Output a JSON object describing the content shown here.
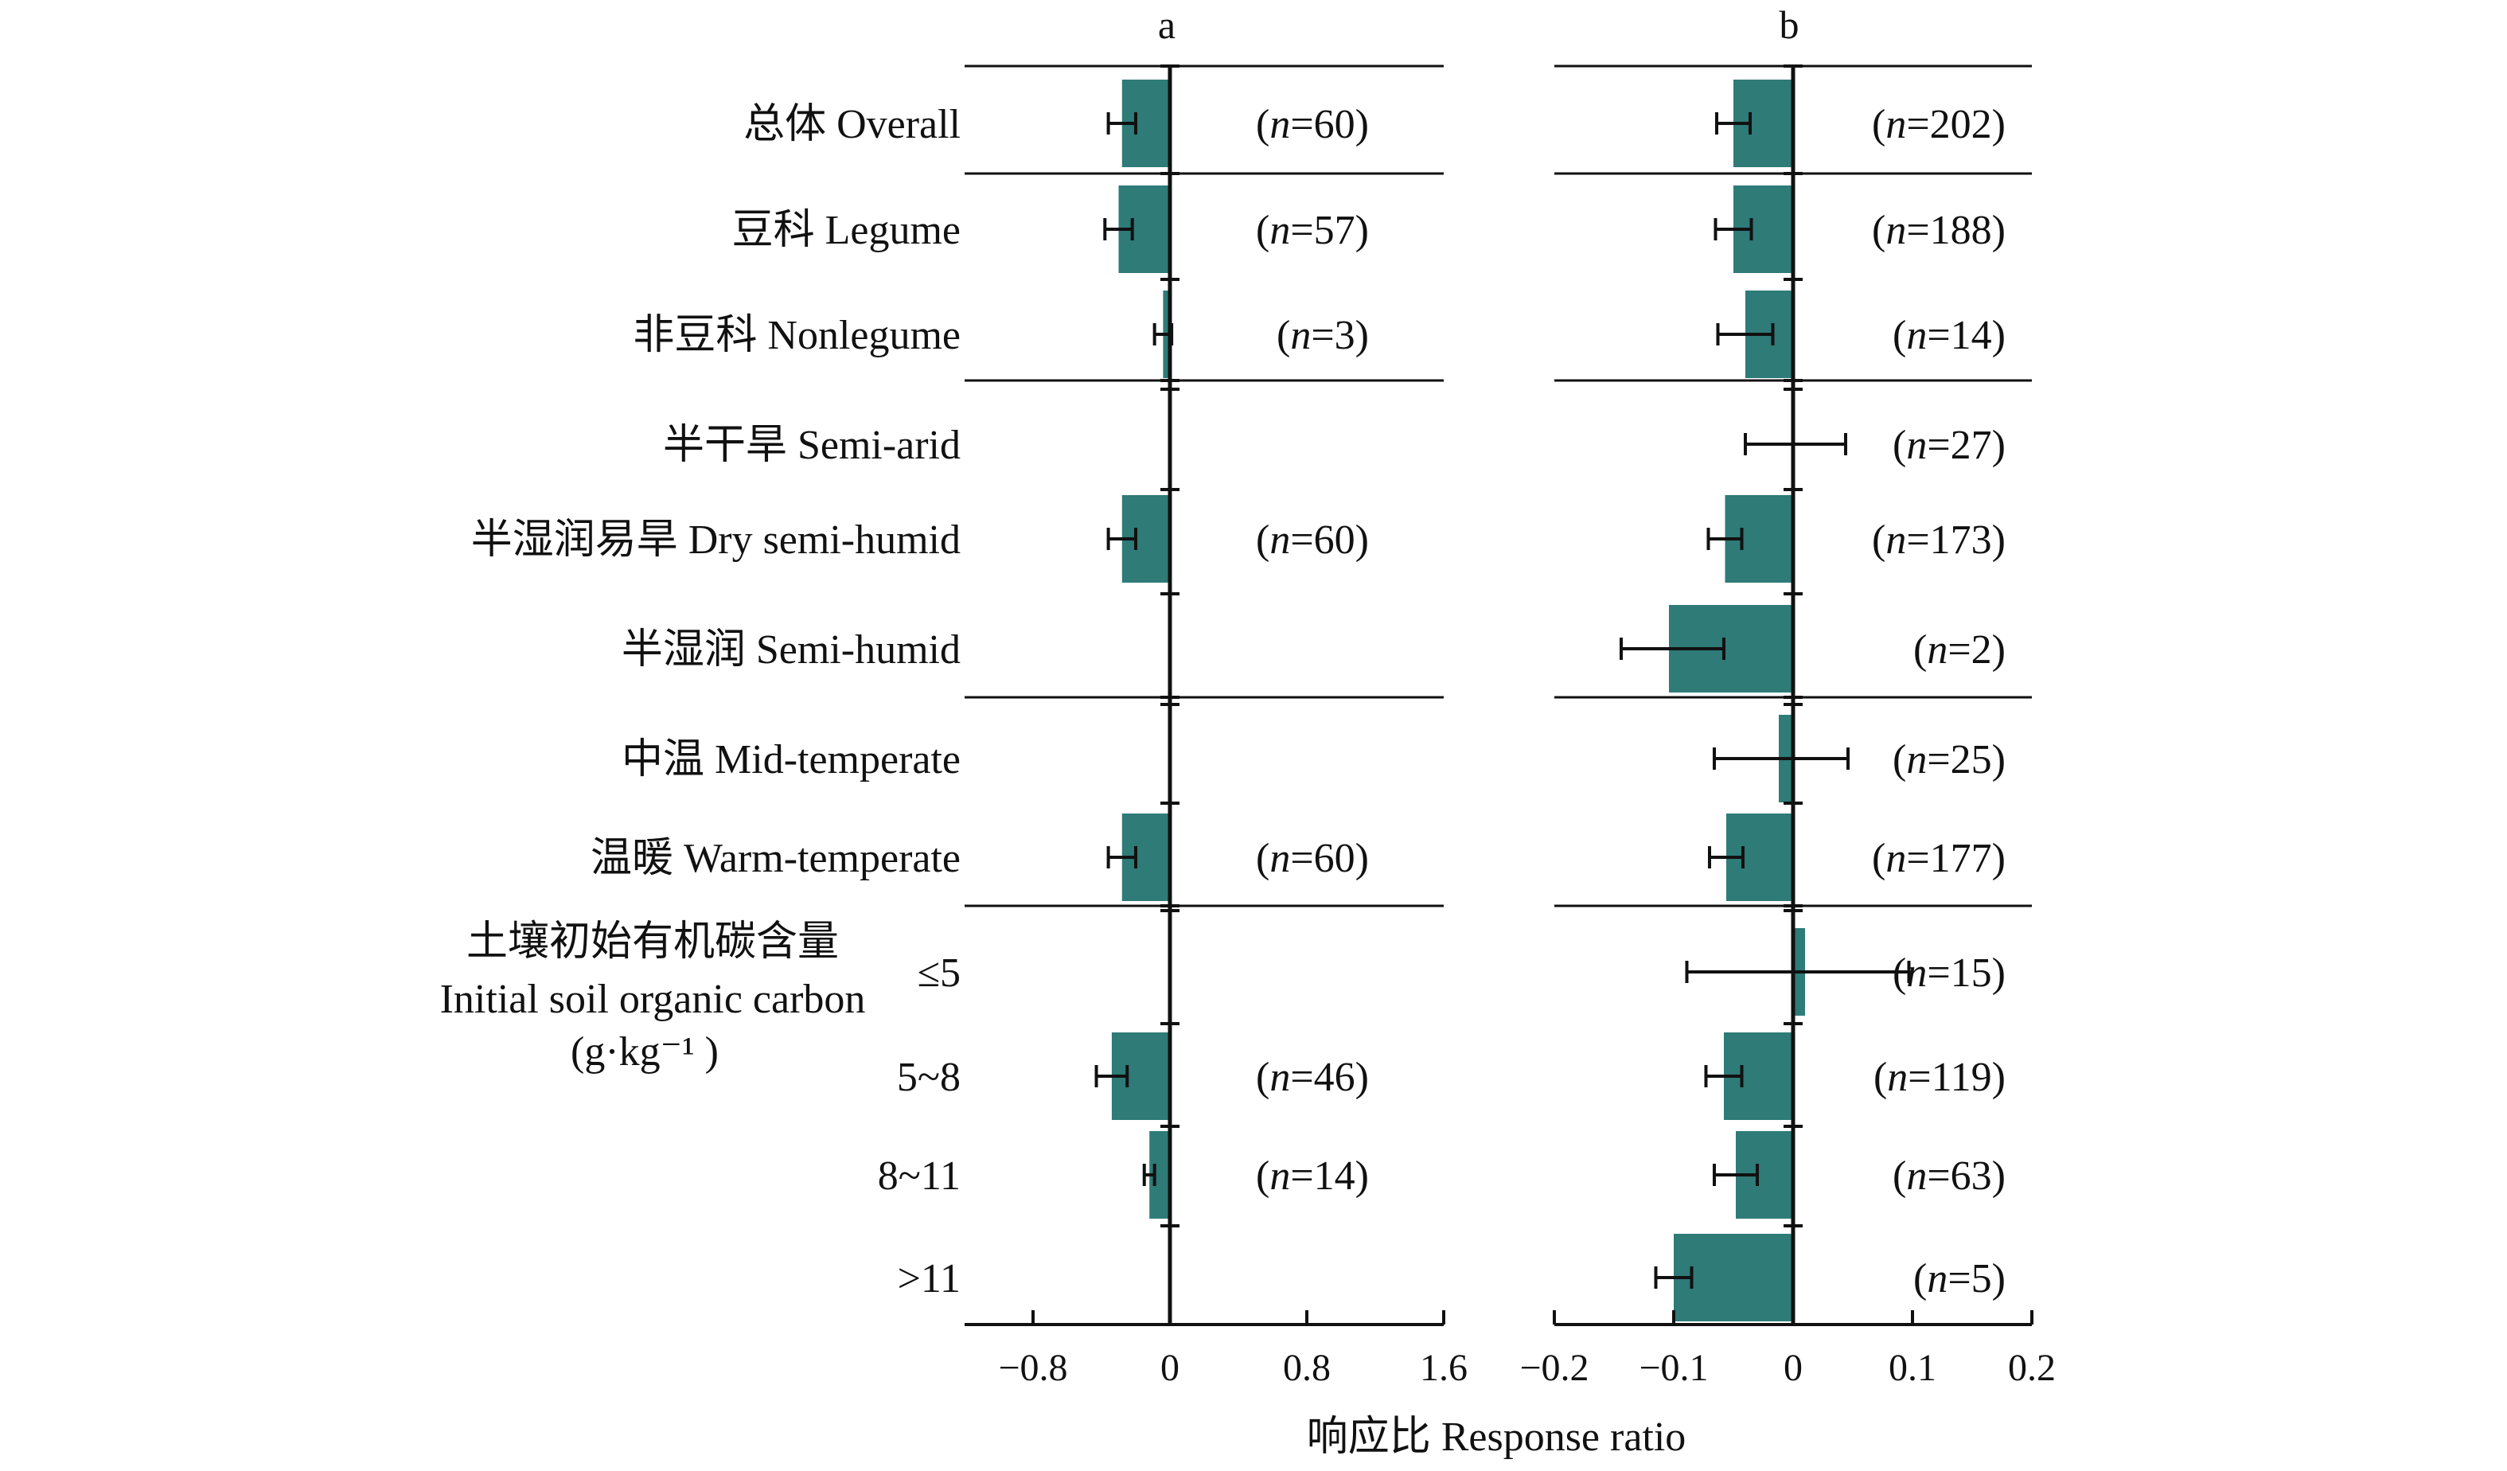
{
  "chart_data": {
    "type": "bar",
    "orientation": "horizontal",
    "error_bars": true,
    "xlabel": "响应比 Response ratio",
    "bar_color": "#2E7B78",
    "line_color": "#111111",
    "rows": [
      {
        "label": "总体 Overall",
        "group": 0
      },
      {
        "label": "豆科 Legume",
        "group": 1
      },
      {
        "label": "非豆科 Nonlegume",
        "group": 1
      },
      {
        "label": "半干旱 Semi-arid",
        "group": 2
      },
      {
        "label": "半湿润易旱 Dry semi-humid",
        "group": 2
      },
      {
        "label": "半湿润 Semi-humid",
        "group": 2
      },
      {
        "label": "中温 Mid-temperate",
        "group": 3
      },
      {
        "label": "温暖 Warm-temperate",
        "group": 3
      },
      {
        "label": "≤5",
        "group": 4
      },
      {
        "label": "5~8",
        "group": 4
      },
      {
        "label": "8~11",
        "group": 4
      },
      {
        "label": ">11",
        "group": 4
      }
    ],
    "group_label_lines": [
      "土壤初始有机碳含量",
      "Initial soil organic carbon",
      "(g·kg⁻¹ )"
    ],
    "panels": [
      {
        "panel_label": "a",
        "xlim": [
          -1.2,
          1.6
        ],
        "ticks": [
          -0.8,
          0,
          0.8,
          1.6
        ],
        "tick_labels": [
          "−0.8",
          "0",
          "0.8",
          "1.6"
        ],
        "values": [
          -0.28,
          -0.3,
          -0.04,
          null,
          -0.28,
          null,
          null,
          -0.28,
          null,
          -0.34,
          -0.12,
          null
        ],
        "err_low": [
          -0.36,
          -0.38,
          -0.09,
          null,
          -0.36,
          null,
          null,
          -0.36,
          null,
          -0.43,
          -0.15,
          null
        ],
        "err_high": [
          -0.2,
          -0.22,
          0.01,
          null,
          -0.2,
          null,
          null,
          -0.2,
          null,
          -0.25,
          -0.09,
          null
        ],
        "n_labels": [
          "(n=60)",
          "(n=57)",
          "(n=3)",
          "",
          "(n=60)",
          "",
          "",
          "(n=60)",
          "",
          "(n=46)",
          "(n=14)",
          ""
        ]
      },
      {
        "panel_label": "b",
        "xlim": [
          -0.2,
          0.2
        ],
        "ticks": [
          -0.2,
          -0.1,
          0,
          0.1,
          0.2
        ],
        "tick_labels": [
          "−0.2",
          "−0.1",
          "0",
          "0.1",
          "0.2"
        ],
        "values": [
          -0.05,
          -0.05,
          -0.04,
          0.0,
          -0.057,
          -0.104,
          -0.012,
          -0.056,
          0.01,
          -0.058,
          -0.048,
          -0.1
        ],
        "err_low": [
          -0.064,
          -0.065,
          -0.063,
          -0.04,
          -0.071,
          -0.144,
          -0.066,
          -0.07,
          -0.089,
          -0.073,
          -0.066,
          -0.115
        ],
        "err_high": [
          -0.036,
          -0.035,
          -0.017,
          0.044,
          -0.043,
          -0.058,
          0.046,
          -0.042,
          0.097,
          -0.043,
          -0.03,
          -0.085
        ],
        "n_labels": [
          "(n=202)",
          "(n=188)",
          "(n=14)",
          "(n=27)",
          "(n=173)",
          "(n=2)",
          "(n=25)",
          "(n=177)",
          "(n=15)",
          "(n=119)",
          "(n=63)",
          "(n=5)"
        ]
      }
    ]
  }
}
